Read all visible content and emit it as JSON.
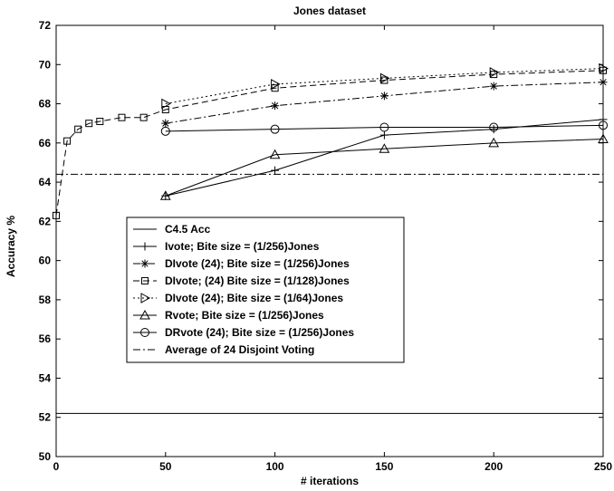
{
  "chart_data": {
    "type": "line",
    "title": "Jones dataset",
    "xlabel": "# iterations",
    "ylabel": "Accuracy %",
    "xlim": [
      0,
      250
    ],
    "ylim": [
      50,
      72
    ],
    "xticks": [
      0,
      50,
      100,
      150,
      200,
      250
    ],
    "yticks": [
      50,
      52,
      54,
      56,
      58,
      60,
      62,
      64,
      66,
      68,
      70,
      72
    ],
    "grid": false,
    "legend_position": "center-left",
    "series": [
      {
        "name": "C4.5 Acc",
        "style": "solid",
        "marker": "none",
        "x": [
          0,
          250
        ],
        "y": [
          52.2,
          52.2
        ]
      },
      {
        "name": "Ivote; Bite size = (1/256)Jones",
        "style": "solid",
        "marker": "plus",
        "x": [
          50,
          100,
          150,
          200,
          250
        ],
        "y": [
          63.3,
          64.6,
          66.4,
          66.7,
          67.2
        ]
      },
      {
        "name": "DIvote (24); Bite size = (1/256)Jones",
        "style": "dashdot",
        "marker": "star",
        "x": [
          50,
          100,
          150,
          200,
          250
        ],
        "y": [
          67.0,
          67.9,
          68.4,
          68.9,
          69.1
        ]
      },
      {
        "name": "DIvote; (24) Bite size = (1/128)Jones",
        "style": "dashed",
        "marker": "square",
        "x": [
          0,
          5,
          10,
          15,
          20,
          30,
          40,
          50,
          100,
          150,
          200,
          250
        ],
        "y": [
          62.3,
          66.1,
          66.7,
          67.0,
          67.1,
          67.3,
          67.3,
          67.7,
          68.8,
          69.2,
          69.5,
          69.7
        ]
      },
      {
        "name": "DIvote (24); Bite size = (1/64)Jones",
        "style": "dotted",
        "marker": "triangle-right",
        "x": [
          50,
          100,
          150,
          200,
          250
        ],
        "y": [
          68.0,
          69.0,
          69.3,
          69.6,
          69.8
        ]
      },
      {
        "name": "Rvote; Bite size = (1/256)Jones",
        "style": "solid",
        "marker": "triangle-up",
        "x": [
          50,
          100,
          150,
          200,
          250
        ],
        "y": [
          63.3,
          65.4,
          65.7,
          66.0,
          66.2
        ]
      },
      {
        "name": "DRvote (24); Bite size = (1/256)Jones",
        "style": "solid",
        "marker": "circle",
        "x": [
          50,
          100,
          150,
          200,
          250
        ],
        "y": [
          66.6,
          66.7,
          66.8,
          66.8,
          66.9
        ]
      },
      {
        "name": "Average of 24 Disjoint Voting",
        "style": "dashdot",
        "marker": "none",
        "x": [
          0,
          250
        ],
        "y": [
          64.4,
          64.4
        ]
      }
    ]
  }
}
